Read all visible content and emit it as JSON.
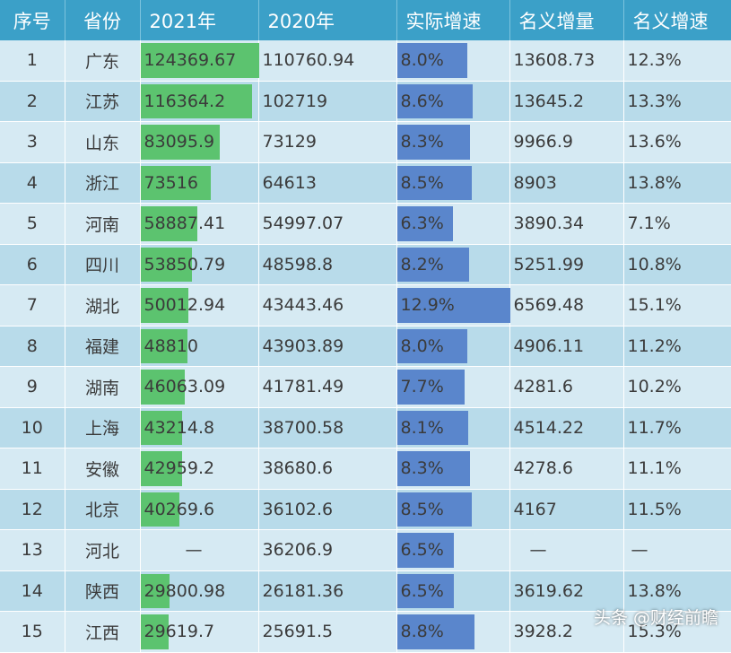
{
  "headers": [
    "序号",
    "省份",
    "2021年",
    "2020年",
    "实际增速",
    "名义增量",
    "名义增速"
  ],
  "rows": [
    {
      "idx": "1",
      "prov": "广东",
      "y2021": "124369.67",
      "y2020": "110760.94",
      "real": "8.0%",
      "inc": "13608.73",
      "nom": "12.3%"
    },
    {
      "idx": "2",
      "prov": "江苏",
      "y2021": "116364.2",
      "y2020": "102719",
      "real": "8.6%",
      "inc": "13645.2",
      "nom": "13.3%"
    },
    {
      "idx": "3",
      "prov": "山东",
      "y2021": "83095.9",
      "y2020": "73129",
      "real": "8.3%",
      "inc": "9966.9",
      "nom": "13.6%"
    },
    {
      "idx": "4",
      "prov": "浙江",
      "y2021": "73516",
      "y2020": "64613",
      "real": "8.5%",
      "inc": "8903",
      "nom": "13.8%"
    },
    {
      "idx": "5",
      "prov": "河南",
      "y2021": "58887.41",
      "y2020": "54997.07",
      "real": "6.3%",
      "inc": "3890.34",
      "nom": "7.1%"
    },
    {
      "idx": "6",
      "prov": "四川",
      "y2021": "53850.79",
      "y2020": "48598.8",
      "real": "8.2%",
      "inc": "5251.99",
      "nom": "10.8%"
    },
    {
      "idx": "7",
      "prov": "湖北",
      "y2021": "50012.94",
      "y2020": "43443.46",
      "real": "12.9%",
      "inc": "6569.48",
      "nom": "15.1%"
    },
    {
      "idx": "8",
      "prov": "福建",
      "y2021": "48810",
      "y2020": "43903.89",
      "real": "8.0%",
      "inc": "4906.11",
      "nom": "11.2%"
    },
    {
      "idx": "9",
      "prov": "湖南",
      "y2021": "46063.09",
      "y2020": "41781.49",
      "real": "7.7%",
      "inc": "4281.6",
      "nom": "10.2%"
    },
    {
      "idx": "10",
      "prov": "上海",
      "y2021": "43214.8",
      "y2020": "38700.58",
      "real": "8.1%",
      "inc": "4514.22",
      "nom": "11.7%"
    },
    {
      "idx": "11",
      "prov": "安徽",
      "y2021": "42959.2",
      "y2020": "38680.6",
      "real": "8.3%",
      "inc": "4278.6",
      "nom": "11.1%"
    },
    {
      "idx": "12",
      "prov": "北京",
      "y2021": "40269.6",
      "y2020": "36102.6",
      "real": "8.5%",
      "inc": "4167",
      "nom": "11.5%"
    },
    {
      "idx": "13",
      "prov": "河北",
      "y2021": "—",
      "y2020": "36206.9",
      "real": "6.5%",
      "inc": "—",
      "nom": "—"
    },
    {
      "idx": "14",
      "prov": "陕西",
      "y2021": "29800.98",
      "y2020": "26181.36",
      "real": "6.5%",
      "inc": "3619.62",
      "nom": "13.8%"
    },
    {
      "idx": "15",
      "prov": "江西",
      "y2021": "29619.7",
      "y2020": "25691.5",
      "real": "8.8%",
      "inc": "3928.2",
      "nom": "15.3%"
    }
  ],
  "bars": {
    "y2021": [
      124369.67,
      116364.2,
      83095.9,
      73516,
      58887.41,
      53850.79,
      50012.94,
      48810,
      46063.09,
      43214.8,
      42959.2,
      40269.6,
      0,
      29800.98,
      29619.7
    ],
    "real": [
      8.0,
      8.6,
      8.3,
      8.5,
      6.3,
      8.2,
      12.9,
      8.0,
      7.7,
      8.1,
      8.3,
      8.5,
      6.5,
      6.5,
      8.8
    ]
  },
  "colors": {
    "header": "#3ba0c8",
    "green_bar": "#5cc36f",
    "blue_bar": "#5a86cc"
  },
  "credit": "头条 @财经前瞻"
}
